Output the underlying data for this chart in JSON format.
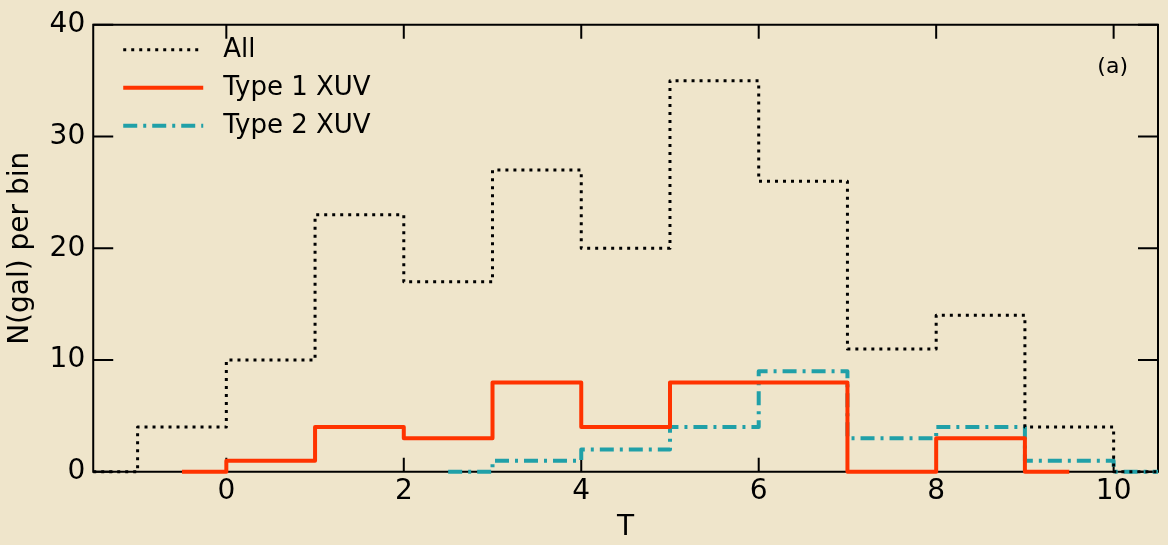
{
  "chart_data": {
    "type": "step",
    "xlabel": "T",
    "ylabel": "N(gal) per bin",
    "annotations": [
      "(a)"
    ],
    "xlim": [
      -1.5,
      10.5
    ],
    "xticks": [
      0,
      2,
      4,
      6,
      8,
      10
    ],
    "ylim": [
      0,
      40
    ],
    "yticks": [
      0,
      10,
      20,
      30,
      40
    ],
    "legend": "top left",
    "series": [
      {
        "name": "All",
        "color": "#000000",
        "line_style": "dotted",
        "x": [
          -1.5,
          -1,
          0,
          1,
          2,
          3,
          4,
          5,
          6,
          7,
          8,
          9,
          10,
          10.5
        ],
        "values": [
          0,
          4,
          10,
          23,
          17,
          27,
          20,
          35,
          26,
          11,
          14,
          4,
          0,
          0
        ]
      },
      {
        "name": "Type 1 XUV",
        "color": "#ff3300",
        "line_style": "solid",
        "x": [
          -0.5,
          0,
          1,
          2,
          3,
          4,
          5,
          6,
          7,
          8,
          9,
          9.5
        ],
        "values": [
          0,
          1,
          4,
          3,
          8,
          4,
          8,
          8,
          0,
          3,
          0,
          0
        ]
      },
      {
        "name": "Type 2 XUV",
        "color": "#20a0a8",
        "line_style": "dashed",
        "x": [
          2.5,
          3,
          4,
          5,
          6,
          7,
          8,
          9,
          10,
          10.5
        ],
        "values": [
          0,
          1,
          2,
          4,
          9,
          3,
          4,
          1,
          0,
          0
        ]
      }
    ]
  }
}
